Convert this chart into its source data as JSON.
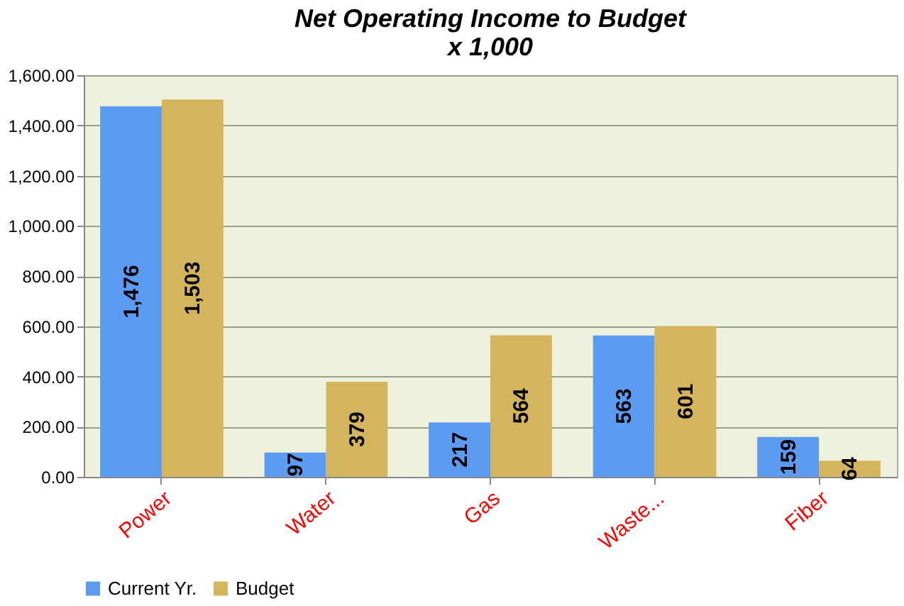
{
  "chart_data": {
    "type": "bar",
    "title": [
      "Net Operating Income to Budget",
      "x 1,000"
    ],
    "categories": [
      "Power",
      "Water",
      "Gas",
      "Waste...",
      "Fiber"
    ],
    "series": [
      {
        "name": "Current Yr.",
        "color": "#5b9cf2",
        "values": [
          1476,
          97,
          217,
          563,
          159
        ],
        "value_labels": [
          "1,476",
          "97",
          "217",
          "563",
          "159"
        ]
      },
      {
        "name": "Budget",
        "color": "#d4b45c",
        "values": [
          1503,
          379,
          564,
          601,
          64
        ],
        "value_labels": [
          "1,503",
          "379",
          "564",
          "601",
          "64"
        ]
      }
    ],
    "ylim": [
      0,
      1600
    ],
    "yticks": [
      {
        "value": 0,
        "label": "0.00"
      },
      {
        "value": 200,
        "label": "200.00"
      },
      {
        "value": 400,
        "label": "400.00"
      },
      {
        "value": 600,
        "label": "600.00"
      },
      {
        "value": 800,
        "label": "800.00"
      },
      {
        "value": 1000,
        "label": "1,000.00"
      },
      {
        "value": 1200,
        "label": "1,200.00"
      },
      {
        "value": 1400,
        "label": "1,400.00"
      },
      {
        "value": 1600,
        "label": "1,600.00"
      }
    ],
    "grid": "y",
    "legend": "bottom"
  }
}
